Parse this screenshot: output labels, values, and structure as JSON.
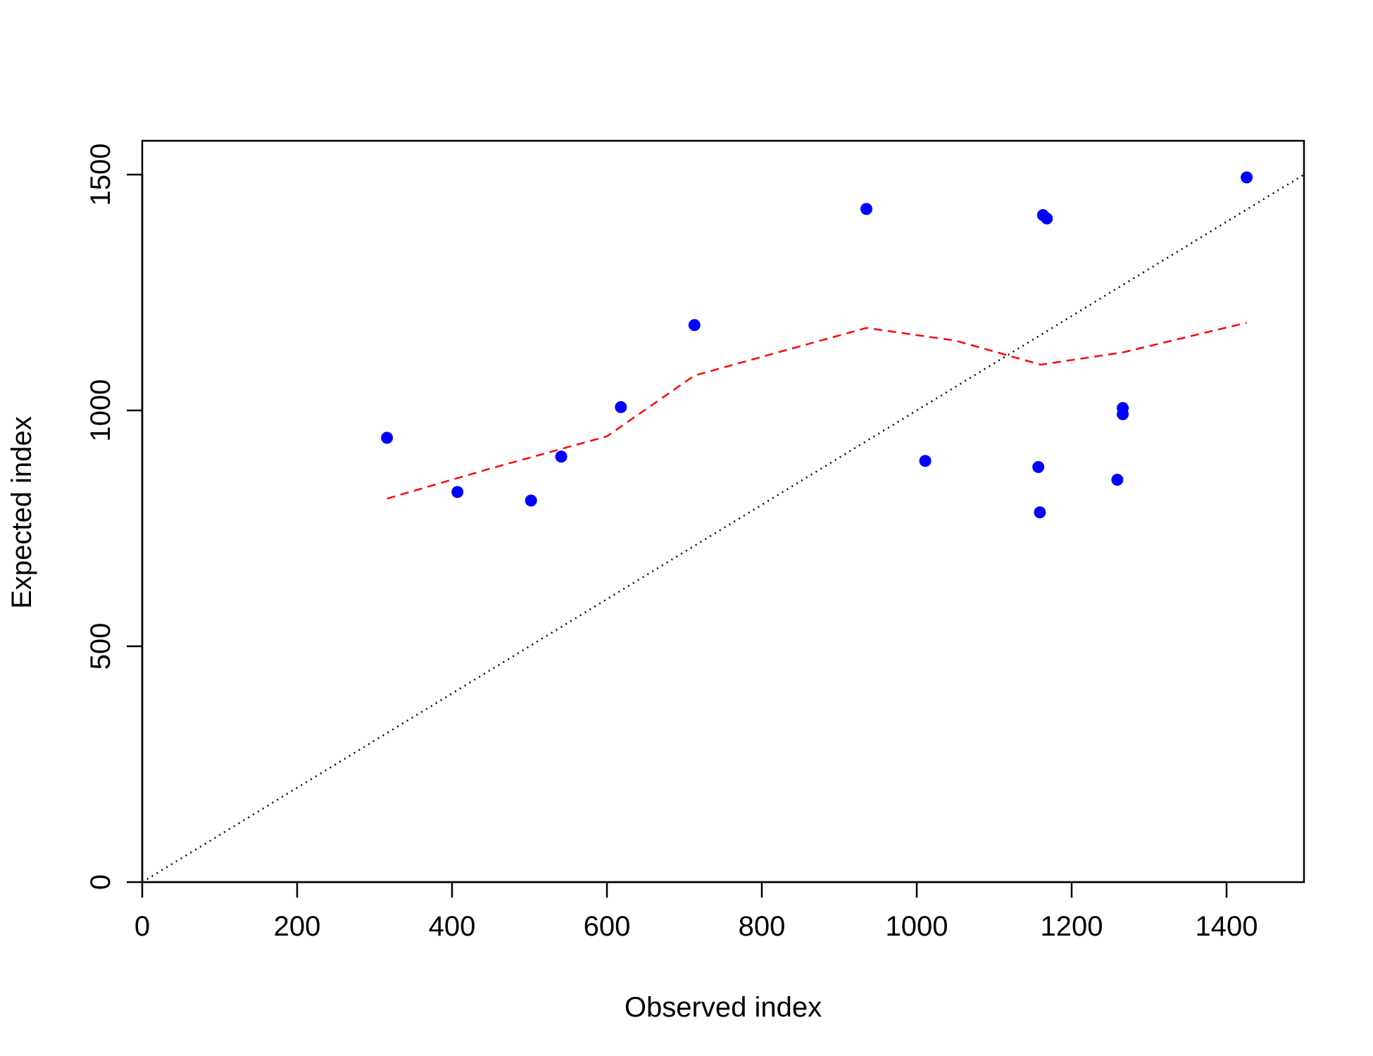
{
  "chart_data": {
    "type": "scatter",
    "title": "",
    "xlabel": "Observed index",
    "ylabel": "Expected index",
    "xlim": [
      0,
      1500
    ],
    "ylim": [
      0,
      1570
    ],
    "x_ticks": [
      0,
      200,
      400,
      600,
      800,
      1000,
      1200,
      1400
    ],
    "y_ticks": [
      0,
      500,
      1000,
      1500
    ],
    "grid": false,
    "points": [
      {
        "x": 316,
        "y": 942
      },
      {
        "x": 407,
        "y": 827
      },
      {
        "x": 502,
        "y": 809
      },
      {
        "x": 541,
        "y": 902
      },
      {
        "x": 618,
        "y": 1007
      },
      {
        "x": 713,
        "y": 1181
      },
      {
        "x": 935,
        "y": 1427
      },
      {
        "x": 1011,
        "y": 893
      },
      {
        "x": 1157,
        "y": 880
      },
      {
        "x": 1159,
        "y": 784
      },
      {
        "x": 1163,
        "y": 1414
      },
      {
        "x": 1168,
        "y": 1407
      },
      {
        "x": 1259,
        "y": 853
      },
      {
        "x": 1266,
        "y": 1005
      },
      {
        "x": 1266,
        "y": 992
      },
      {
        "x": 1426,
        "y": 1494
      }
    ],
    "reference_line": {
      "from": [
        0,
        0
      ],
      "to": [
        1500,
        1500
      ],
      "color": "#000000",
      "style": "dotted"
    },
    "smooth_line": {
      "color": "#ff0000",
      "style": "dashed",
      "points": [
        [
          316,
          813
        ],
        [
          450,
          877
        ],
        [
          600,
          945
        ],
        [
          713,
          1074
        ],
        [
          935,
          1175
        ],
        [
          1050,
          1148
        ],
        [
          1160,
          1097
        ],
        [
          1266,
          1123
        ],
        [
          1426,
          1186
        ]
      ]
    },
    "point_color": "#0000ff"
  }
}
